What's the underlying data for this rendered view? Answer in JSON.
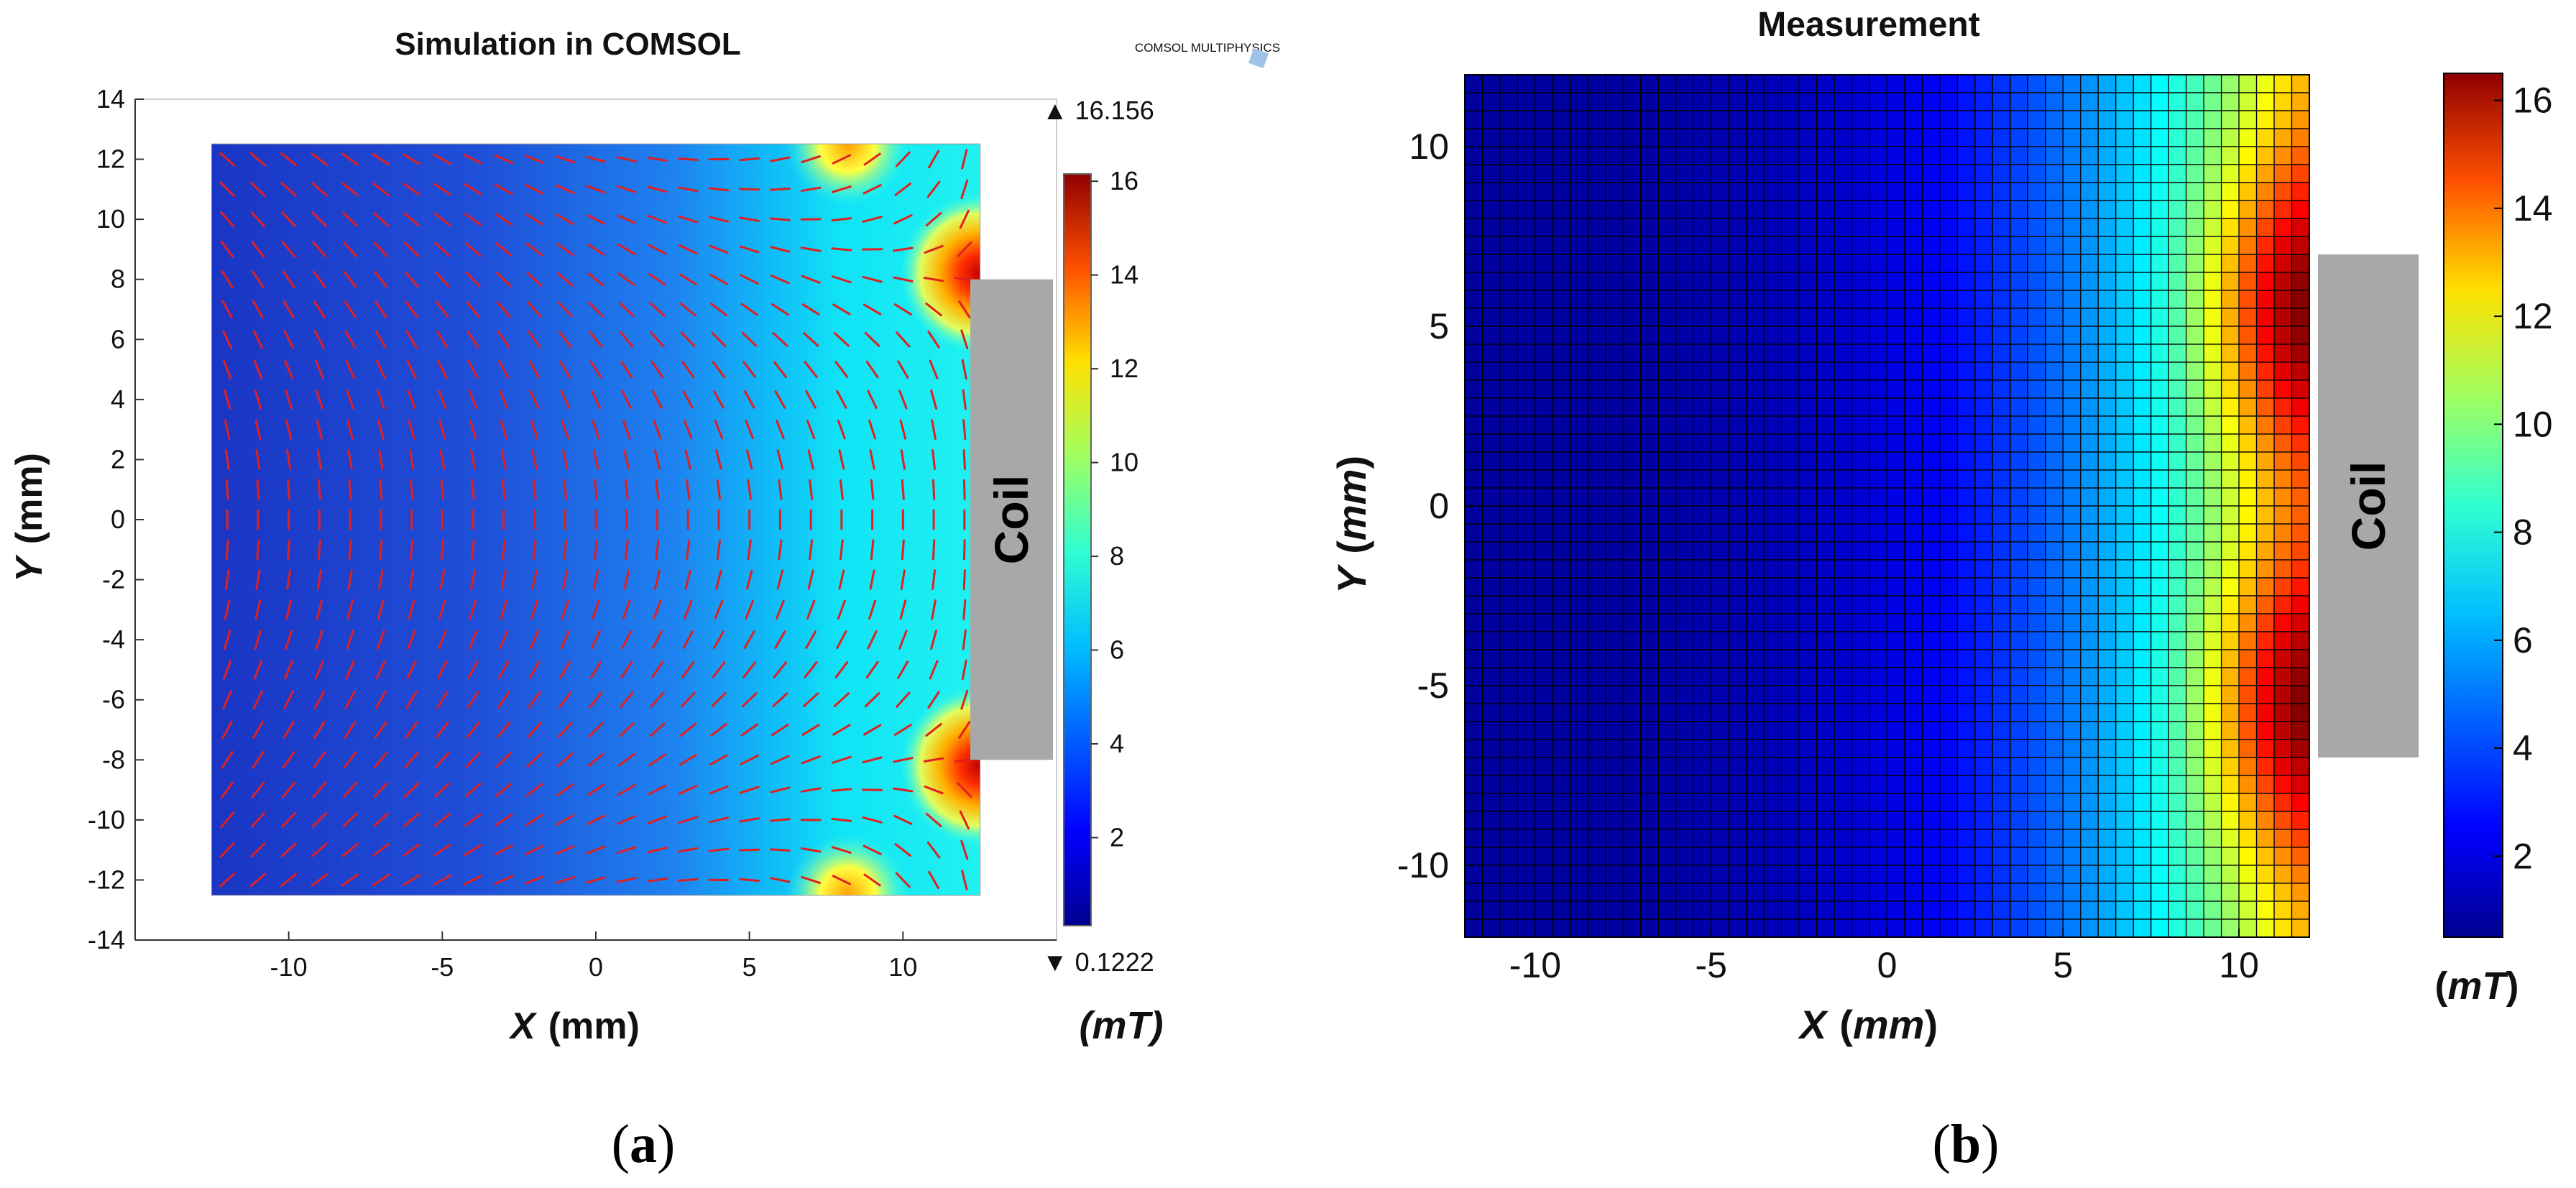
{
  "chart_data": [
    {
      "type": "heatmap",
      "title": "Simulation in COMSOL",
      "watermark": "COMSOL MULTIPHYSICS",
      "xlabel": "X (mm)",
      "ylabel": "Y (mm)",
      "xlabel_var": "X",
      "xlabel_unit": "(mm)",
      "ylabel_var": "Y",
      "ylabel_unit": "(mm)",
      "xlim": [
        -15,
        15
      ],
      "ylim": [
        -14,
        14
      ],
      "x_ticks": [
        -10,
        -5,
        0,
        5,
        10
      ],
      "y_ticks": [
        -14,
        -12,
        -10,
        -8,
        -6,
        -4,
        -2,
        0,
        2,
        4,
        6,
        8,
        10,
        12,
        14
      ],
      "domain_x": [
        -12.5,
        12.5
      ],
      "domain_y": [
        -12.5,
        12.5
      ],
      "arrows": "normalized magnetic flux direction (red)",
      "colorbar": {
        "min": 0.1222,
        "max": 16.156,
        "max_label": "▲ 16.156",
        "min_label": "▼ 0.1222",
        "ticks": [
          2,
          4,
          6,
          8,
          10,
          12,
          14,
          16
        ],
        "unit": "(mT)",
        "unit_var": "mT"
      },
      "coil": {
        "label": "Coil",
        "y_range": [
          -8,
          8
        ]
      },
      "panel_label": "a",
      "panel_label_full": "(a)"
    },
    {
      "type": "heatmap",
      "title": "Measurement",
      "xlabel": "X (mm)",
      "ylabel": "Y (mm)",
      "xlabel_var": "X",
      "xlabel_unit": "mm",
      "ylabel_var": "Y",
      "ylabel_unit": "mm",
      "xlim": [
        -12,
        12
      ],
      "ylim": [
        -12,
        12
      ],
      "x_ticks": [
        -10,
        -5,
        0,
        5,
        10
      ],
      "y_ticks": [
        -10,
        -5,
        0,
        5,
        10
      ],
      "grid_cells": [
        48,
        48
      ],
      "colorbar": {
        "min": 0.5,
        "max": 16.5,
        "ticks": [
          2,
          4,
          6,
          8,
          10,
          12,
          14,
          16
        ],
        "unit": "(mT)",
        "unit_var": "mT"
      },
      "coil": {
        "label": "Coil",
        "y_range": [
          -7,
          7
        ]
      },
      "panel_label": "b",
      "panel_label_full": "(b)"
    }
  ],
  "colors": {
    "arrow": "#e02020",
    "coil": "#a8a8a8",
    "grid_line": "#000000",
    "colormap_stops": [
      "#00008f",
      "#0000ff",
      "#0080ff",
      "#00ffff",
      "#80ff80",
      "#ffff00",
      "#ff8000",
      "#ff0000",
      "#800000"
    ]
  }
}
